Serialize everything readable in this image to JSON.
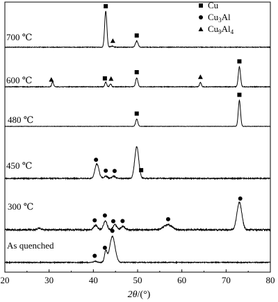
{
  "chart_data": {
    "type": "line",
    "xlim": [
      20,
      80
    ],
    "x_ticks": [
      20,
      30,
      40,
      50,
      60,
      70,
      80
    ],
    "xlabel_italic": "2θ",
    "xlabel_unit": "/(°)",
    "legend": {
      "placement": "top-right",
      "entries": [
        {
          "marker": "square",
          "label": "Cu"
        },
        {
          "marker": "circle",
          "label": "Cu3Al",
          "base": "Cu",
          "sub1": "3",
          "mid": "Al",
          "sub2": ""
        },
        {
          "marker": "triangle",
          "label": "Cu9Al4",
          "base": "Cu",
          "sub1": "9",
          "mid": "Al",
          "sub2": "4"
        }
      ]
    },
    "series": [
      {
        "name": "700 ℃",
        "peaks": [
          [
            42.8,
            1.0,
            0.25
          ],
          [
            49.8,
            0.17,
            0.3
          ],
          [
            44.2,
            0.03,
            0.3
          ]
        ],
        "markers": [
          {
            "x": 42.8,
            "type": "square"
          },
          {
            "x": 44.4,
            "type": "triangle"
          },
          {
            "x": 49.8,
            "type": "square"
          }
        ]
      },
      {
        "name": "600 ℃",
        "peaks": [
          [
            30.8,
            0.14,
            0.2
          ],
          [
            42.8,
            0.13,
            0.2
          ],
          [
            43.9,
            0.08,
            0.2
          ],
          [
            49.8,
            0.25,
            0.25
          ],
          [
            64.2,
            0.12,
            0.2
          ],
          [
            73.0,
            0.55,
            0.25
          ]
        ],
        "markers": [
          {
            "x": 30.5,
            "type": "triangle"
          },
          {
            "x": 42.6,
            "type": "square"
          },
          {
            "x": 44.0,
            "type": "triangle"
          },
          {
            "x": 49.8,
            "type": "square"
          },
          {
            "x": 64.2,
            "type": "triangle"
          },
          {
            "x": 73.0,
            "type": "square"
          }
        ]
      },
      {
        "name": "480 ℃",
        "peaks": [
          [
            49.8,
            0.2,
            0.25
          ],
          [
            73.0,
            0.72,
            0.25
          ]
        ],
        "markers": [
          {
            "x": 49.8,
            "type": "square"
          },
          {
            "x": 73.0,
            "type": "square"
          }
        ]
      },
      {
        "name": "450 ℃",
        "peaks": [
          [
            40.8,
            0.4,
            0.45
          ],
          [
            42.8,
            0.06,
            0.4
          ],
          [
            44.6,
            0.06,
            0.4
          ],
          [
            49.8,
            0.88,
            0.45
          ]
        ],
        "markers": [
          {
            "x": 40.6,
            "type": "circle"
          },
          {
            "x": 42.8,
            "type": "circle"
          },
          {
            "x": 44.8,
            "type": "circle"
          },
          {
            "x": 50.8,
            "type": "square"
          }
        ]
      },
      {
        "name": "300 ℃",
        "peaks": [
          [
            27.8,
            0.04,
            0.4
          ],
          [
            40.5,
            0.12,
            0.45
          ],
          [
            42.7,
            0.25,
            0.4
          ],
          [
            44.9,
            0.14,
            0.4
          ],
          [
            46.7,
            0.09,
            0.5
          ],
          [
            56.8,
            0.14,
            0.9
          ],
          [
            73.0,
            0.76,
            0.55
          ]
        ],
        "markers": [
          {
            "x": 40.3,
            "type": "circle"
          },
          {
            "x": 42.6,
            "type": "circle"
          },
          {
            "x": 44.5,
            "type": "circle"
          },
          {
            "x": 46.6,
            "type": "circle"
          },
          {
            "x": 56.9,
            "type": "circle"
          },
          {
            "x": 73.2,
            "type": "circle"
          }
        ]
      },
      {
        "name": "As quenched",
        "peaks": [
          [
            42.8,
            0.3,
            0.3
          ],
          [
            44.3,
            0.72,
            0.6
          ],
          [
            40.4,
            0.03,
            0.4
          ]
        ],
        "markers": [
          {
            "x": 40.3,
            "type": "circle"
          },
          {
            "x": 42.6,
            "type": "circle"
          },
          {
            "x": 44.3,
            "type": "circle"
          }
        ]
      }
    ]
  }
}
